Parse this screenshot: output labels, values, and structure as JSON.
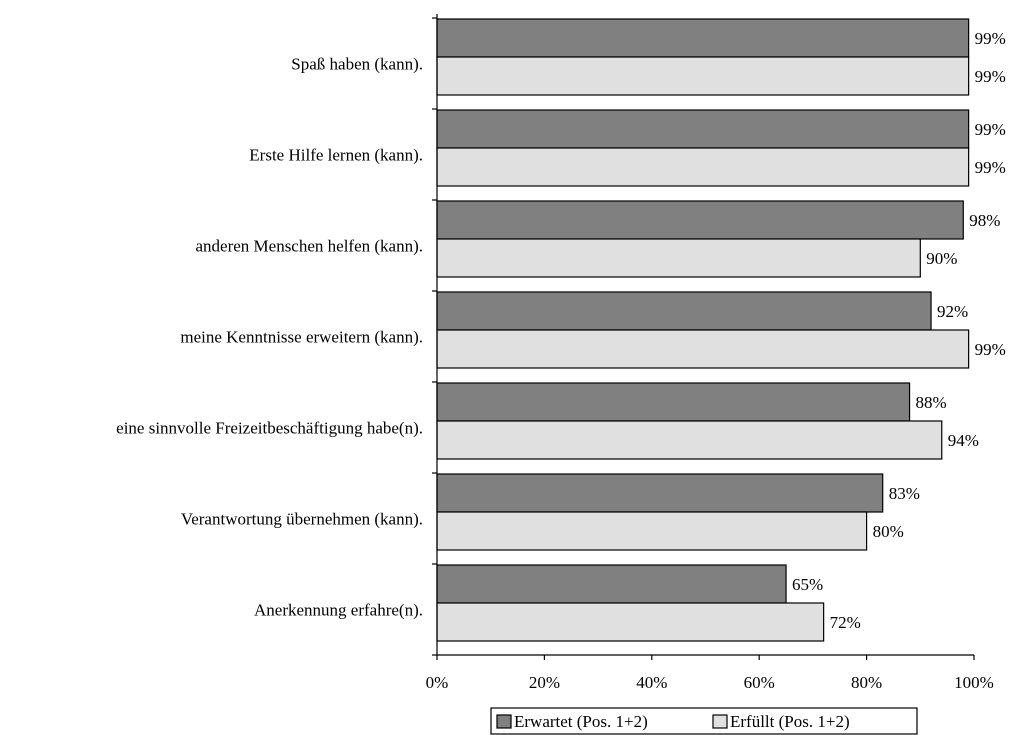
{
  "chart_data": {
    "type": "bar",
    "orientation": "horizontal",
    "title": "",
    "xlabel": "",
    "ylabel": "",
    "xlim": [
      0,
      100
    ],
    "grid": false,
    "legend_position": "bottom",
    "value_suffix": "%",
    "categories": [
      "Spaß haben (kann).",
      "Erste Hilfe lernen (kann).",
      "anderen Menschen helfen (kann).",
      "meine Kenntnisse erweitern (kann).",
      "eine sinnvolle Freizeitbeschäftigung habe(n).",
      "Verantwortung übernehmen (kann).",
      "Anerkennung erfahre(n)."
    ],
    "series": [
      {
        "name": "Erwartet (Pos. 1+2)",
        "color": "#808080",
        "values": [
          99,
          99,
          98,
          92,
          88,
          83,
          65
        ]
      },
      {
        "name": "Erfüllt (Pos. 1+2)",
        "color": "#e0e0e0",
        "values": [
          99,
          99,
          90,
          99,
          94,
          80,
          72
        ]
      }
    ],
    "ticks": [
      0,
      20,
      40,
      60,
      80,
      100
    ],
    "tick_labels": [
      "0%",
      "20%",
      "40%",
      "60%",
      "80%",
      "100%"
    ]
  }
}
